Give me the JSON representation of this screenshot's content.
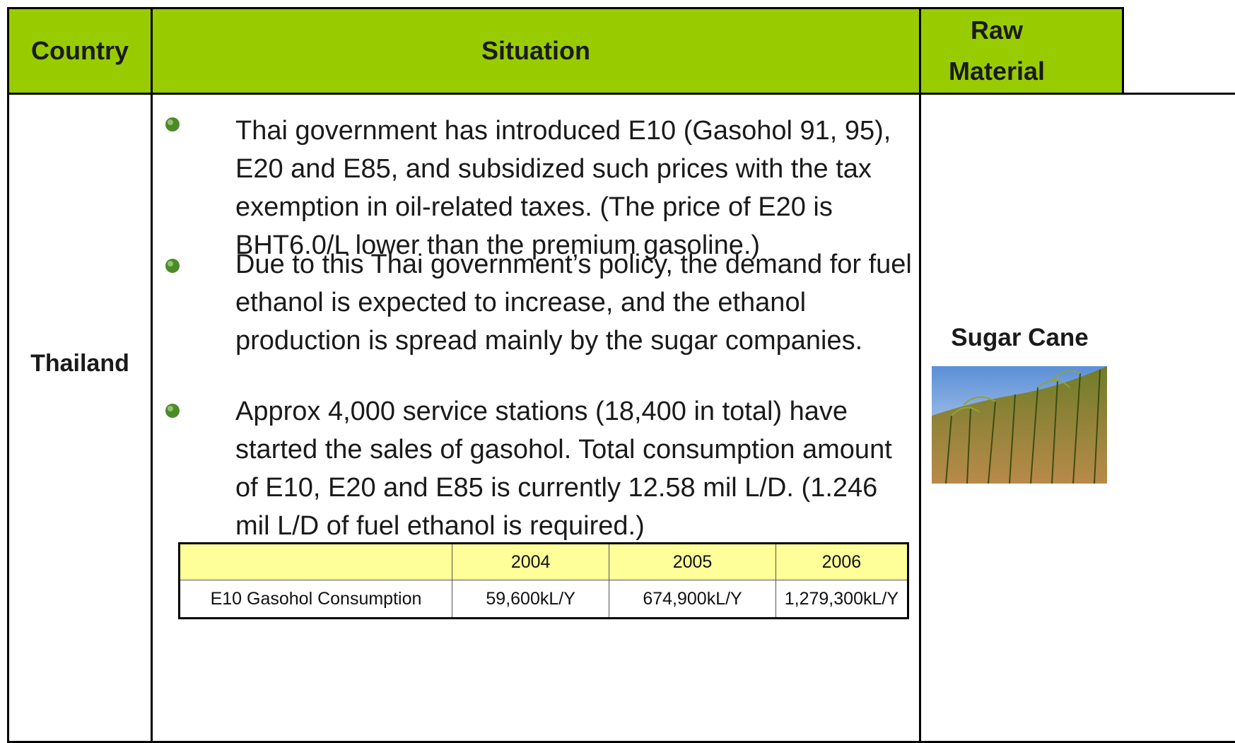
{
  "table": {
    "header": [
      "Country",
      "Situation",
      "Raw Material"
    ],
    "country": "Thailand",
    "situation": [
      "Thai government has introduced E10 (Gasohol 91, 95), E20 and E85, and subsidized such prices with the tax exemption in oil-related taxes. (The price of E20 is BHT6.0/L lower than the premium gasoline.)",
      "Due to this Thai government’s policy, the demand for fuel ethanol  is expected to increase, and the ethanol production is spread mainly by the sugar companies.",
      "Approx 4,000 service stations (18,400 in total) have started the sales of gasohol. Total consumption amount of E10, E20 and E85 is currently 12.58 mil L/D. (1.246 mil L/D of fuel ethanol is required.)"
    ],
    "raw_material": "Sugar Cane",
    "consumption": {
      "years": [
        "2004",
        "2005",
        "2006"
      ],
      "label": "E10 Gasohol Consumption",
      "values": [
        "59,600kL/Y",
        "674,900kL/Y",
        "1,279,300kL/Y"
      ]
    }
  }
}
